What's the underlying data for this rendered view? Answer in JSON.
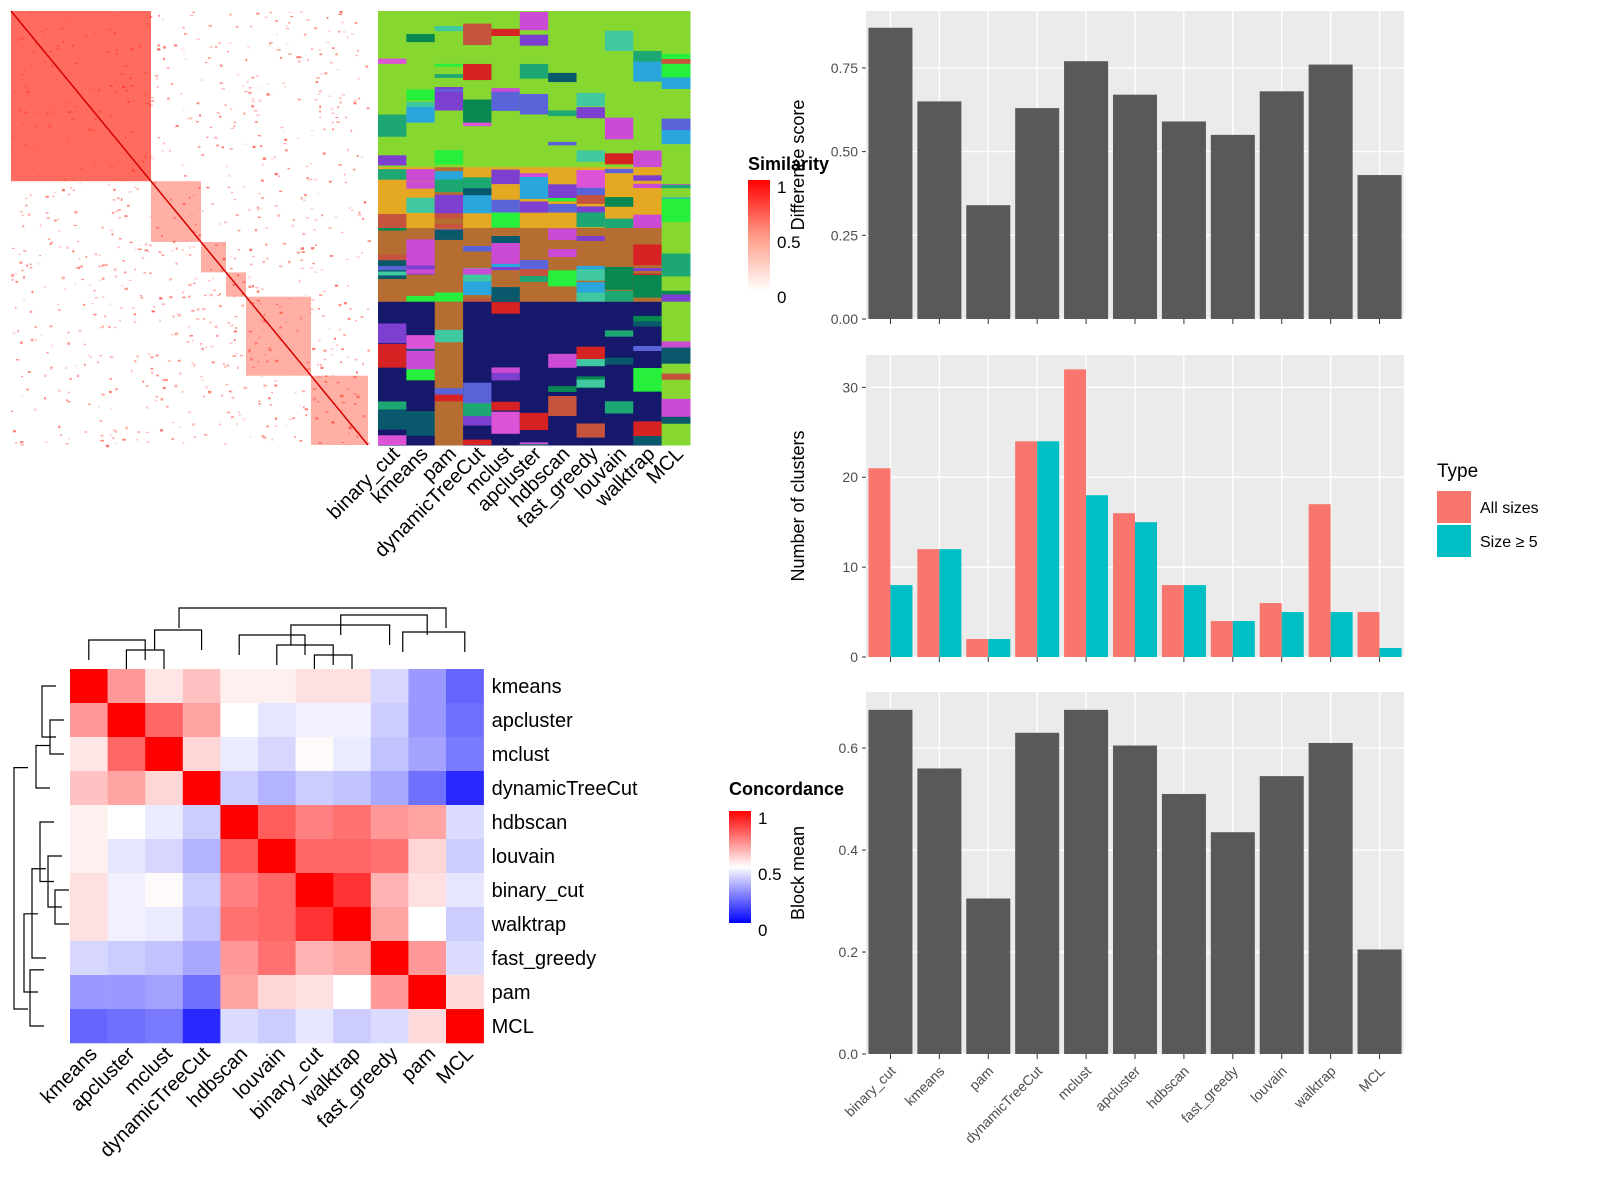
{
  "methods": [
    "binary_cut",
    "kmeans",
    "pam",
    "dynamicTreeCut",
    "mclust",
    "apcluster",
    "hdbscan",
    "fast_greedy",
    "louvain",
    "walktrap",
    "MCL"
  ],
  "colors": {
    "heat_low": "#ffffff",
    "heat_high": "#ff0000",
    "conc_low": "#0000ff",
    "conc_mid": "#ffffff",
    "conc_high": "#ff0000",
    "bar": "#595959",
    "panel_bg": "#ebebeb",
    "grid": "#ffffff",
    "series_all": "#f8766d",
    "series_size5": "#00bfc4",
    "cluster_palette": [
      "#86d830",
      "#e4a823",
      "#b56d31",
      "#16186b",
      "#1da772",
      "#dd53d8",
      "#29a6db",
      "#09586c",
      "#078850",
      "#cb4bd4",
      "#5a63d8",
      "#c6533d",
      "#7d3fd0",
      "#26f03c",
      "#d62222",
      "#40c8a0"
    ]
  },
  "similarity_heatmap": {
    "legend_title": "Similarity",
    "legend_ticks": [
      "1",
      "0.5",
      "0"
    ]
  },
  "concordance_heatmap": {
    "legend_title": "Concordance",
    "legend_ticks": [
      "1",
      "0.5",
      "0"
    ],
    "order": [
      "kmeans",
      "apcluster",
      "mclust",
      "dynamicTreeCut",
      "hdbscan",
      "louvain",
      "binary_cut",
      "walktrap",
      "fast_greedy",
      "pam",
      "MCL"
    ]
  },
  "chart_data": [
    {
      "type": "heatmap",
      "title": "Concordance",
      "rows": [
        "kmeans",
        "apcluster",
        "mclust",
        "dynamicTreeCut",
        "hdbscan",
        "louvain",
        "binary_cut",
        "walktrap",
        "fast_greedy",
        "pam",
        "MCL"
      ],
      "columns": [
        "kmeans",
        "apcluster",
        "mclust",
        "dynamicTreeCut",
        "hdbscan",
        "louvain",
        "binary_cut",
        "walktrap",
        "fast_greedy",
        "pam",
        "MCL"
      ],
      "values": [
        [
          1.0,
          0.7,
          0.55,
          0.62,
          0.53,
          0.53,
          0.56,
          0.56,
          0.42,
          0.3,
          0.2
        ],
        [
          0.7,
          1.0,
          0.8,
          0.68,
          0.5,
          0.45,
          0.47,
          0.47,
          0.4,
          0.3,
          0.22
        ],
        [
          0.55,
          0.8,
          1.0,
          0.58,
          0.46,
          0.42,
          0.51,
          0.46,
          0.38,
          0.32,
          0.24
        ],
        [
          0.62,
          0.68,
          0.58,
          1.0,
          0.4,
          0.35,
          0.4,
          0.38,
          0.33,
          0.22,
          0.08
        ],
        [
          0.53,
          0.5,
          0.46,
          0.4,
          1.0,
          0.82,
          0.75,
          0.78,
          0.7,
          0.68,
          0.43
        ],
        [
          0.53,
          0.45,
          0.42,
          0.35,
          0.82,
          1.0,
          0.8,
          0.8,
          0.78,
          0.58,
          0.4
        ],
        [
          0.56,
          0.47,
          0.51,
          0.4,
          0.75,
          0.8,
          1.0,
          0.9,
          0.65,
          0.56,
          0.45
        ],
        [
          0.56,
          0.47,
          0.46,
          0.38,
          0.78,
          0.8,
          0.9,
          1.0,
          0.68,
          0.5,
          0.4
        ],
        [
          0.42,
          0.4,
          0.38,
          0.33,
          0.7,
          0.78,
          0.65,
          0.68,
          1.0,
          0.7,
          0.43
        ],
        [
          0.3,
          0.3,
          0.32,
          0.22,
          0.68,
          0.58,
          0.56,
          0.5,
          0.7,
          1.0,
          0.57
        ],
        [
          0.2,
          0.22,
          0.24,
          0.08,
          0.43,
          0.4,
          0.45,
          0.4,
          0.43,
          0.57,
          1.0
        ]
      ],
      "range": [
        0,
        1
      ]
    },
    {
      "type": "bar",
      "categories": [
        "binary_cut",
        "kmeans",
        "pam",
        "dynamicTreeCut",
        "mclust",
        "apcluster",
        "hdbscan",
        "fast_greedy",
        "louvain",
        "walktrap",
        "MCL"
      ],
      "values": [
        0.87,
        0.65,
        0.34,
        0.63,
        0.77,
        0.67,
        0.59,
        0.55,
        0.68,
        0.76,
        0.43
      ],
      "ylabel": "Difference score",
      "ylim": [
        0,
        0.92
      ],
      "yticks": [
        "0.00",
        "0.25",
        "0.50",
        "0.75"
      ]
    },
    {
      "type": "bar",
      "categories": [
        "binary_cut",
        "kmeans",
        "pam",
        "dynamicTreeCut",
        "mclust",
        "apcluster",
        "hdbscan",
        "fast_greedy",
        "louvain",
        "walktrap",
        "MCL"
      ],
      "series": [
        {
          "name": "All sizes",
          "values": [
            21,
            12,
            2,
            24,
            32,
            16,
            8,
            4,
            6,
            17,
            5
          ]
        },
        {
          "name": "Size ≥ 5",
          "values": [
            8,
            12,
            2,
            24,
            18,
            15,
            8,
            4,
            5,
            5,
            1
          ]
        }
      ],
      "ylabel": "Number of clusters",
      "ylim": [
        0,
        33.6
      ],
      "yticks": [
        "0",
        "10",
        "20",
        "30"
      ],
      "legend": {
        "title": "Type",
        "position": "right"
      }
    },
    {
      "type": "bar",
      "categories": [
        "binary_cut",
        "kmeans",
        "pam",
        "dynamicTreeCut",
        "mclust",
        "apcluster",
        "hdbscan",
        "fast_greedy",
        "louvain",
        "walktrap",
        "MCL"
      ],
      "values": [
        0.675,
        0.56,
        0.305,
        0.63,
        0.675,
        0.605,
        0.51,
        0.435,
        0.545,
        0.61,
        0.205
      ],
      "ylabel": "Block mean",
      "ylim": [
        0,
        0.71
      ],
      "yticks": [
        "0.0",
        "0.2",
        "0.4",
        "0.6"
      ]
    }
  ]
}
